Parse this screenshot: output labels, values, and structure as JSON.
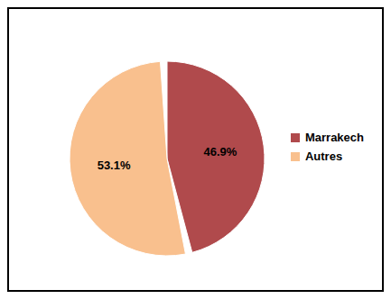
{
  "chart_data": {
    "type": "pie",
    "categories": [
      "Marrakech",
      "Autres"
    ],
    "values": [
      46.9,
      53.1
    ],
    "value_labels": [
      "46.9%",
      "53.1%"
    ],
    "colors": [
      "#b04a4c",
      "#f9c08e"
    ],
    "data_labels": true,
    "legend": "right"
  }
}
